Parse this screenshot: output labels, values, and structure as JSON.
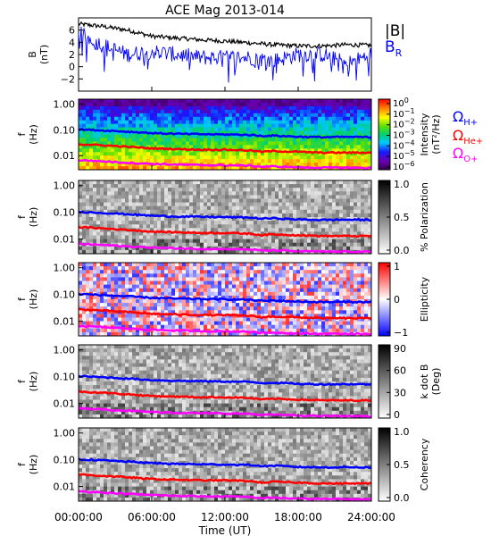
{
  "title": "ACE Mag 2013-014",
  "xlabel": "Time (UT)",
  "xticks": [
    "00:00:00",
    "06:00:00",
    "12:00:00",
    "18:00:00",
    "24:00:00"
  ],
  "colors": {
    "b_total": "#000000",
    "b_radial": "#0000ff",
    "omega_h": "#0000ff",
    "omega_he": "#ff0000",
    "omega_o": "#ff00ff"
  },
  "chart_data": [
    {
      "type": "line",
      "panel": "field",
      "ylabel": "B",
      "yunit": "(nT)",
      "ylim": [
        -4,
        8
      ],
      "yticks": [
        "6",
        "4",
        "2",
        "0",
        "−2"
      ],
      "ytick_values": [
        6,
        4,
        2,
        0,
        -2
      ],
      "xlim_hours": [
        0,
        24
      ],
      "legend": [
        "|B|",
        "B",
        "R"
      ],
      "series": [
        {
          "name": "|B|",
          "color": "#000000",
          "x": [
            0,
            2,
            4,
            6,
            8,
            10,
            12,
            14,
            16,
            18,
            20,
            22,
            24
          ],
          "values": [
            7.0,
            6.6,
            6.0,
            5.0,
            4.7,
            4.4,
            4.2,
            3.9,
            3.6,
            3.4,
            3.4,
            3.6,
            3.5
          ]
        },
        {
          "name": "B_R",
          "color": "#0000ff",
          "x": [
            0,
            2,
            4,
            6,
            8,
            10,
            12,
            14,
            16,
            18,
            20,
            22,
            24
          ],
          "values": [
            5.5,
            3.5,
            2.0,
            2.5,
            2.0,
            1.5,
            1.5,
            1.5,
            1.0,
            2.0,
            2.0,
            0.5,
            2.0
          ]
        }
      ]
    },
    {
      "type": "heatmap",
      "panel": "intensity",
      "ylabel": "f",
      "yunit": "(Hz)",
      "yticks": [
        "1.00",
        "0.10",
        "0.01"
      ],
      "ytick_values": [
        1.0,
        0.1,
        0.01
      ],
      "colorbar_label": "Intensity",
      "colorbar_unit": "(nT²/Hz)",
      "colorbar_ticks": [
        {
          "base": "10",
          "exp": "0"
        },
        {
          "base": "10",
          "exp": "−1"
        },
        {
          "base": "10",
          "exp": "−2"
        },
        {
          "base": "10",
          "exp": "−3"
        },
        {
          "base": "10",
          "exp": "−4"
        },
        {
          "base": "10",
          "exp": "−5"
        },
        {
          "base": "10",
          "exp": "−6"
        }
      ],
      "colorbar_range_log": [
        -6.5,
        0
      ]
    },
    {
      "type": "heatmap",
      "panel": "polarization",
      "ylabel": "f",
      "yunit": "(Hz)",
      "yticks": [
        "1.00",
        "0.10",
        "0.01"
      ],
      "ytick_values": [
        1.0,
        0.1,
        0.01
      ],
      "colorbar_label": "% Polarization",
      "colorbar_ticks": [
        "1.0",
        "0.5",
        "0.0"
      ],
      "colorbar_range": [
        0,
        1
      ]
    },
    {
      "type": "heatmap",
      "panel": "ellipticity",
      "ylabel": "f",
      "yunit": "(Hz)",
      "yticks": [
        "1.00",
        "0.10",
        "0.01"
      ],
      "ytick_values": [
        1.0,
        0.1,
        0.01
      ],
      "colorbar_label": "Ellipticity",
      "colorbar_ticks": [
        "1",
        "0",
        "−1"
      ],
      "colorbar_range": [
        -1,
        1
      ]
    },
    {
      "type": "heatmap",
      "panel": "kdotb",
      "ylabel": "f",
      "yunit": "(Hz)",
      "yticks": [
        "1.00",
        "0.10",
        "0.01"
      ],
      "ytick_values": [
        1.0,
        0.1,
        0.01
      ],
      "colorbar_label": "k dot B",
      "colorbar_unit": "(Deg)",
      "colorbar_ticks": [
        "90",
        "60",
        "30",
        "0"
      ],
      "colorbar_range": [
        0,
        90
      ]
    },
    {
      "type": "heatmap",
      "panel": "coherency",
      "ylabel": "f",
      "yunit": "(Hz)",
      "yticks": [
        "1.00",
        "0.10",
        "0.01"
      ],
      "ytick_values": [
        1.0,
        0.1,
        0.01
      ],
      "colorbar_label": "Coherency",
      "colorbar_ticks": [
        "1.0",
        "0.5",
        "0.0"
      ],
      "colorbar_range": [
        0,
        1
      ]
    }
  ],
  "gyrofrequency_lines": {
    "x_hours": [
      0,
      2,
      4,
      6,
      8,
      10,
      12,
      14,
      15,
      16,
      18,
      20,
      22,
      24
    ],
    "omega_h_hz": [
      0.105,
      0.095,
      0.085,
      0.075,
      0.07,
      0.068,
      0.066,
      0.064,
      0.058,
      0.06,
      0.054,
      0.052,
      0.053,
      0.052
    ],
    "omega_he_hz": [
      0.028,
      0.025,
      0.022,
      0.019,
      0.018,
      0.017,
      0.017,
      0.016,
      0.014,
      0.015,
      0.014,
      0.013,
      0.013,
      0.013
    ],
    "omega_o_hz": [
      0.0067,
      0.006,
      0.0053,
      0.0048,
      0.0045,
      0.0043,
      0.0042,
      0.0041,
      0.0037,
      0.0038,
      0.0035,
      0.0034,
      0.0034,
      0.0033
    ]
  },
  "legend_omega": [
    {
      "symbol": "Ω",
      "sub": "H+",
      "color": "#0000ff"
    },
    {
      "symbol": "Ω",
      "sub": "He+",
      "color": "#ff0000"
    },
    {
      "symbol": "Ω",
      "sub": "O+",
      "color": "#ff00ff"
    }
  ]
}
